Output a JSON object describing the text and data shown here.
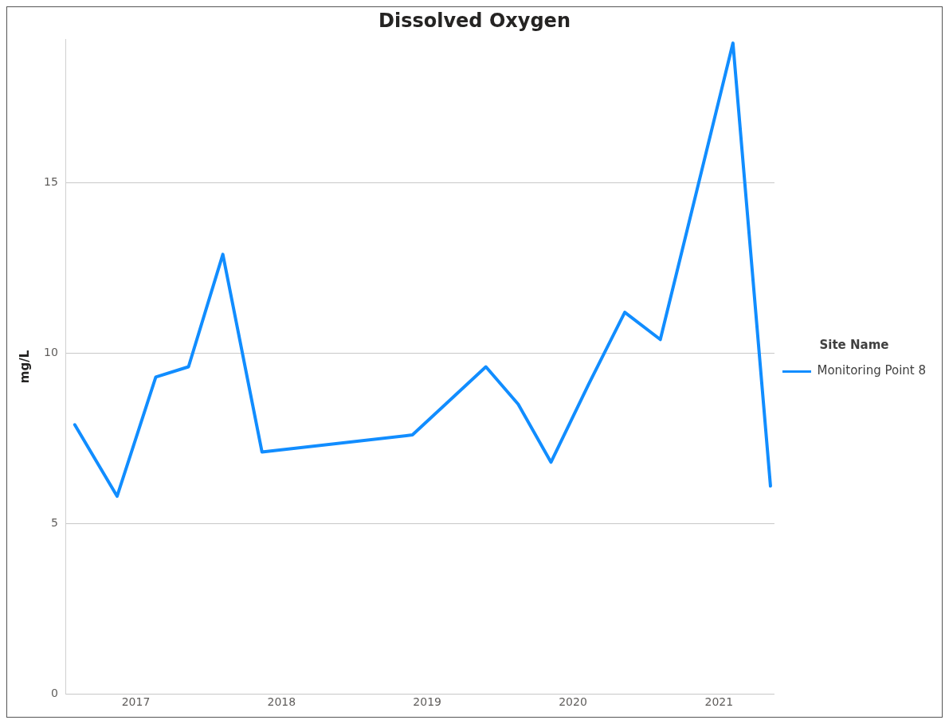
{
  "chart_data": {
    "type": "line",
    "title": "Dissolved Oxygen",
    "ylabel": "mg/L",
    "legend_title": "Site Name",
    "x": [
      "2016-08-01",
      "2016-11-15",
      "2017-02-20",
      "2017-05-13",
      "2017-08-07",
      "2017-11-13",
      "2018-11-25",
      "2019-05-28",
      "2019-08-17",
      "2019-11-07",
      "2020-02-10",
      "2020-05-10",
      "2020-08-07",
      "2021-02-05",
      "2021-05-10"
    ],
    "series": [
      {
        "name": "Monitoring Point 8",
        "color": "#118dff",
        "values": [
          7.9,
          5.8,
          9.3,
          9.6,
          12.9,
          7.1,
          7.6,
          9.6,
          8.5,
          6.8,
          9.1,
          11.2,
          10.4,
          19.1,
          6.1
        ]
      }
    ],
    "ylim": [
      0,
      19.2
    ],
    "yticks": [
      0,
      5,
      10,
      15
    ],
    "xlim": [
      "2016-07-10",
      "2021-05-20"
    ],
    "xticks": [
      {
        "value": "2017-01-01",
        "label": "2017"
      },
      {
        "value": "2018-01-01",
        "label": "2018"
      },
      {
        "value": "2019-01-01",
        "label": "2019"
      },
      {
        "value": "2020-01-01",
        "label": "2020"
      },
      {
        "value": "2021-01-01",
        "label": "2021"
      }
    ],
    "grid": "y",
    "legend": "right",
    "marker": "none",
    "line_style": "solid"
  }
}
